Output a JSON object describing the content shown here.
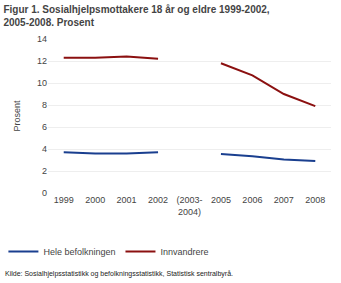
{
  "chart_data": {
    "type": "line",
    "title": "Figur 1. Sosialhjelpsmottakere 18 år og eldre 1999-2002,\n2005-2008. Prosent",
    "y_label": "Prosent",
    "annotations": [
      "Kilde: Sosialhjelpsstatistikk og befolkningsstatistikk, Statistisk sentralbyrå."
    ],
    "categories": [
      "1999",
      "2000",
      "2001",
      "2002",
      "(2003-\n2004)",
      "2005",
      "2006",
      "2007",
      "2008"
    ],
    "series": [
      {
        "name": "Hele befolkningen",
        "color": "#1a3f8f",
        "values": [
          3.7,
          3.6,
          3.6,
          3.7,
          null,
          3.55,
          3.35,
          3.05,
          2.9
        ]
      },
      {
        "name": "Innvandrere",
        "color": "#8b1010",
        "values": [
          12.3,
          12.3,
          12.4,
          12.2,
          null,
          11.8,
          10.7,
          9.0,
          7.9
        ]
      }
    ],
    "ylim": [
      0,
      14
    ],
    "yticks": [
      0,
      2,
      4,
      6,
      8,
      10,
      12,
      14
    ],
    "grid": true,
    "legend": "bottom"
  }
}
